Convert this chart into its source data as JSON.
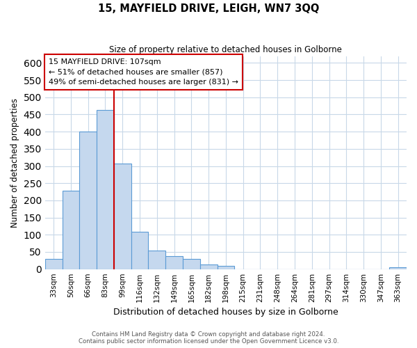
{
  "title": "15, MAYFIELD DRIVE, LEIGH, WN7 3QQ",
  "subtitle": "Size of property relative to detached houses in Golborne",
  "xlabel": "Distribution of detached houses by size in Golborne",
  "ylabel": "Number of detached properties",
  "bar_labels": [
    "33sqm",
    "50sqm",
    "66sqm",
    "83sqm",
    "99sqm",
    "116sqm",
    "132sqm",
    "149sqm",
    "165sqm",
    "182sqm",
    "198sqm",
    "215sqm",
    "231sqm",
    "248sqm",
    "264sqm",
    "281sqm",
    "297sqm",
    "314sqm",
    "330sqm",
    "347sqm",
    "363sqm"
  ],
  "bar_values": [
    30,
    228,
    400,
    463,
    308,
    108,
    54,
    37,
    29,
    14,
    10,
    0,
    0,
    0,
    0,
    0,
    0,
    0,
    0,
    0,
    5
  ],
  "bar_color": "#c5d8ee",
  "bar_edge_color": "#5b9bd5",
  "vline_x": 3.5,
  "vline_color": "#cc0000",
  "annotation_text_line1": "15 MAYFIELD DRIVE: 107sqm",
  "annotation_text_line2": "← 51% of detached houses are smaller (857)",
  "annotation_text_line3": "49% of semi-detached houses are larger (831) →",
  "box_edge_color": "#cc0000",
  "ylim": [
    0,
    620
  ],
  "yticks": [
    0,
    50,
    100,
    150,
    200,
    250,
    300,
    350,
    400,
    450,
    500,
    550,
    600
  ],
  "footer_line1": "Contains HM Land Registry data © Crown copyright and database right 2024.",
  "footer_line2": "Contains public sector information licensed under the Open Government Licence v3.0.",
  "background_color": "#ffffff",
  "grid_color": "#c8d8e8"
}
